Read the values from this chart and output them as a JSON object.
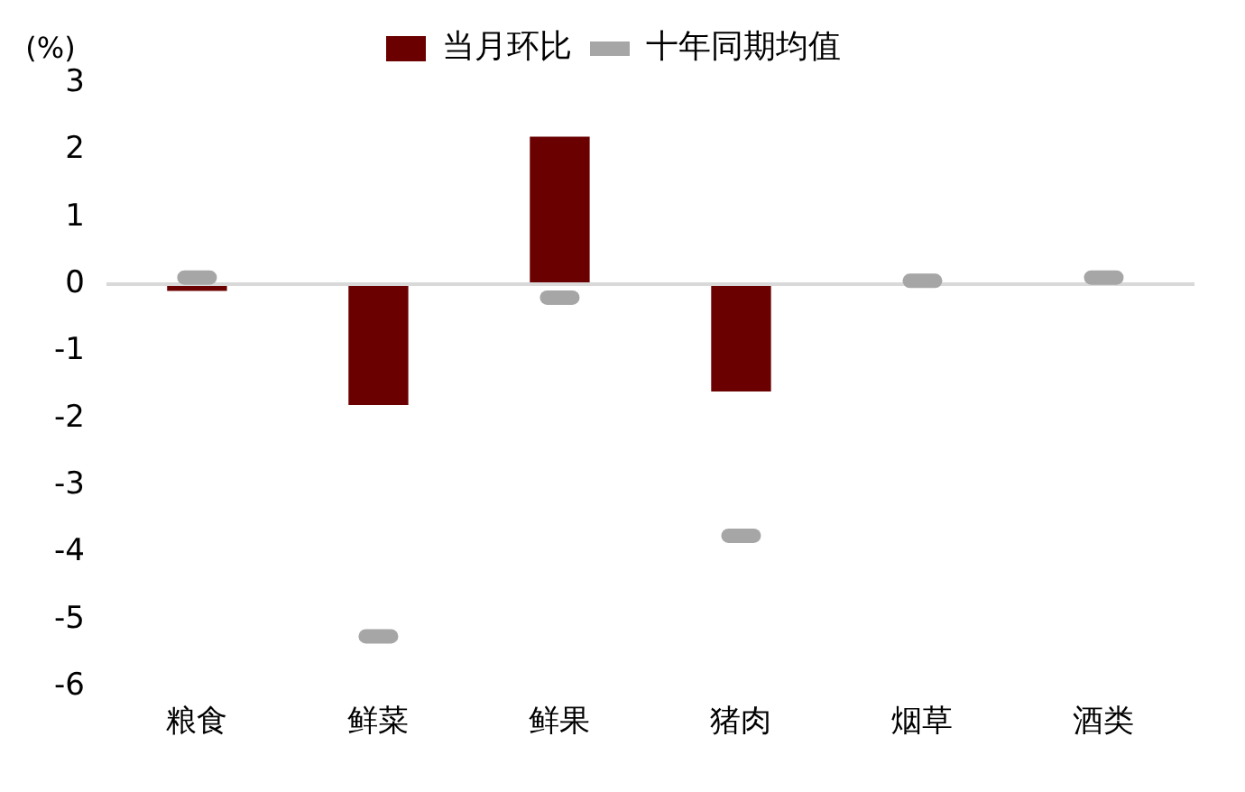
{
  "chart_data": {
    "type": "bar",
    "ylabel": "(%)",
    "categories": [
      "粮食",
      "鲜菜",
      "鲜果",
      "猪肉",
      "烟草",
      "酒类"
    ],
    "series": [
      {
        "name": "当月环比",
        "color": "#6b0000",
        "values": [
          -0.1,
          -1.8,
          2.2,
          -1.6,
          null,
          null
        ]
      },
      {
        "name": "十年同期均值",
        "type": "scatter",
        "color": "#a6a6a6",
        "values": [
          0.1,
          -5.25,
          -0.2,
          -3.75,
          0.05,
          0.1
        ]
      }
    ],
    "ylim": [
      -6,
      3
    ],
    "yticks": [
      -6,
      -5,
      -4,
      -3,
      -2,
      -1,
      0,
      1,
      2,
      3
    ],
    "legend": "top"
  }
}
